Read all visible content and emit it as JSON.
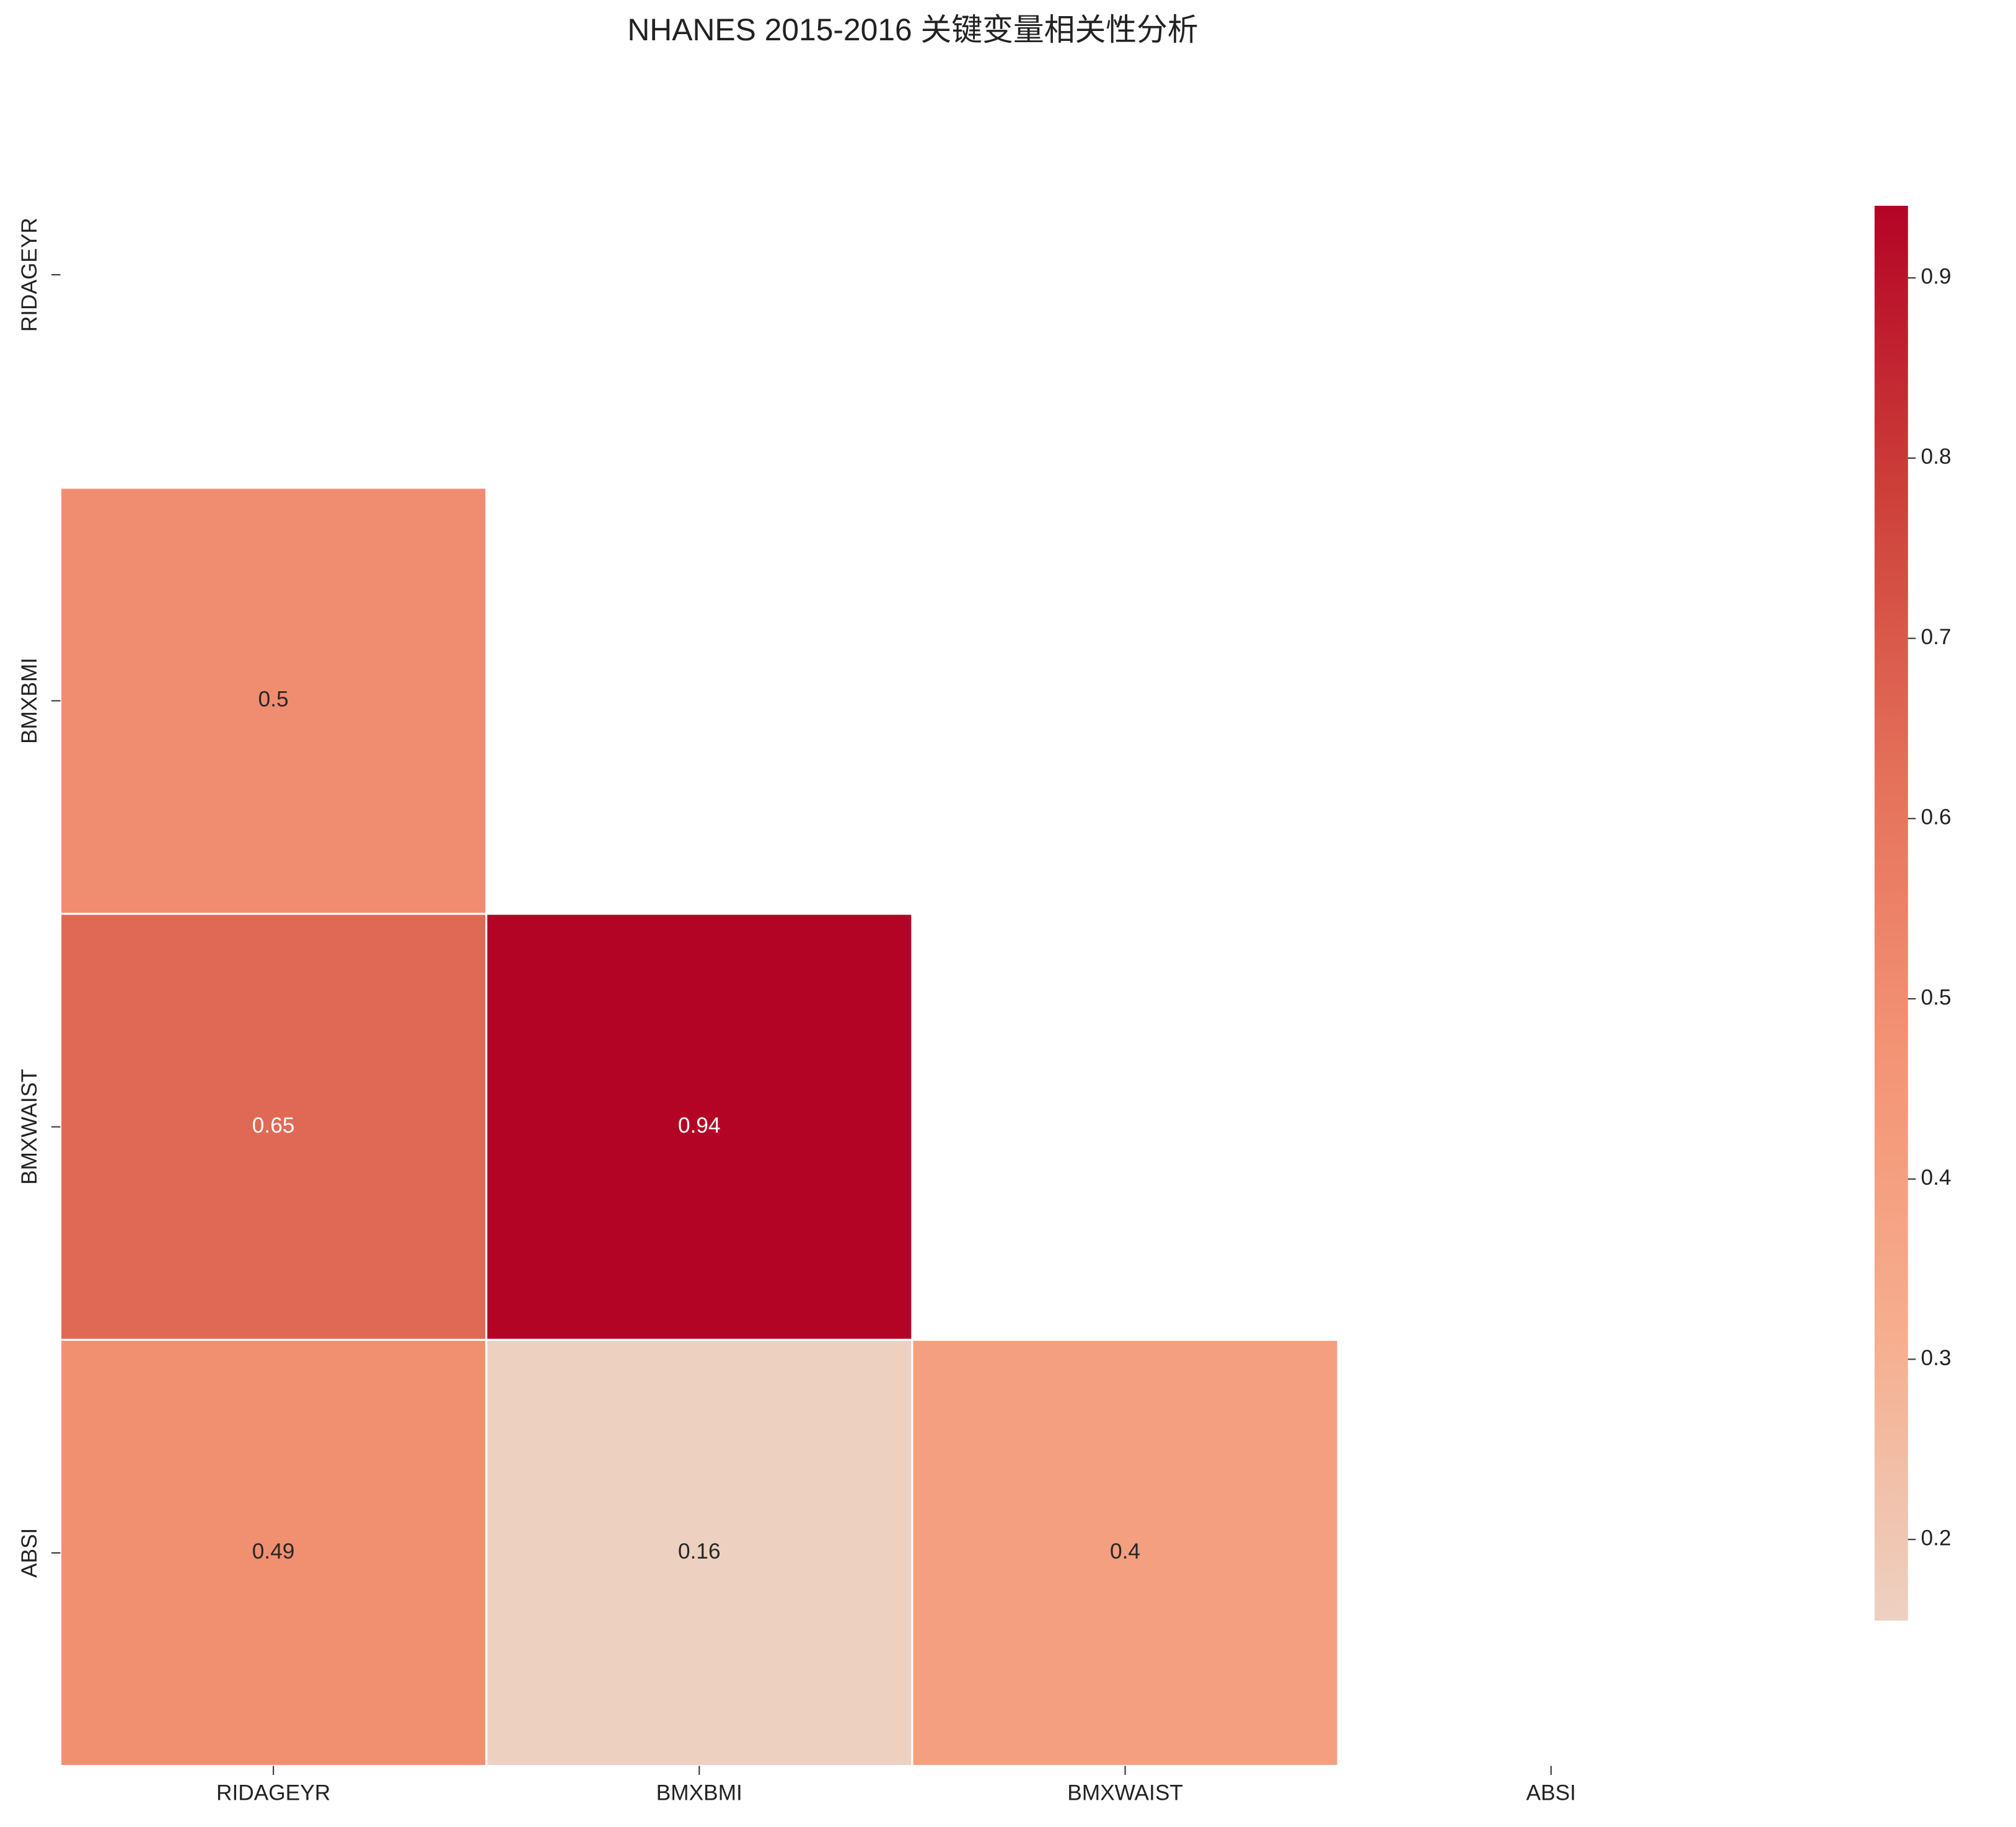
{
  "chart_data": {
    "type": "heatmap",
    "title": "NHANES 2015-2016 关键变量相关性分析",
    "x_categories": [
      "RIDAGEYR",
      "BMXBMI",
      "BMXWAIST",
      "ABSI"
    ],
    "y_categories": [
      "RIDAGEYR",
      "BMXBMI",
      "BMXWAIST",
      "ABSI"
    ],
    "values": [
      [
        null,
        null,
        null,
        null
      ],
      [
        0.5,
        null,
        null,
        null
      ],
      [
        0.65,
        0.94,
        null,
        null
      ],
      [
        0.49,
        0.16,
        0.4,
        null
      ]
    ],
    "zlim": [
      0.155,
      0.94
    ],
    "zticks": [
      0.2,
      0.3,
      0.4,
      0.5,
      0.6,
      0.7,
      0.8,
      0.9
    ],
    "colors": [
      "#edd1c2",
      "#f6ae8f",
      "#f39475",
      "#e4705a",
      "#cc3f39",
      "#b40426"
    ]
  }
}
